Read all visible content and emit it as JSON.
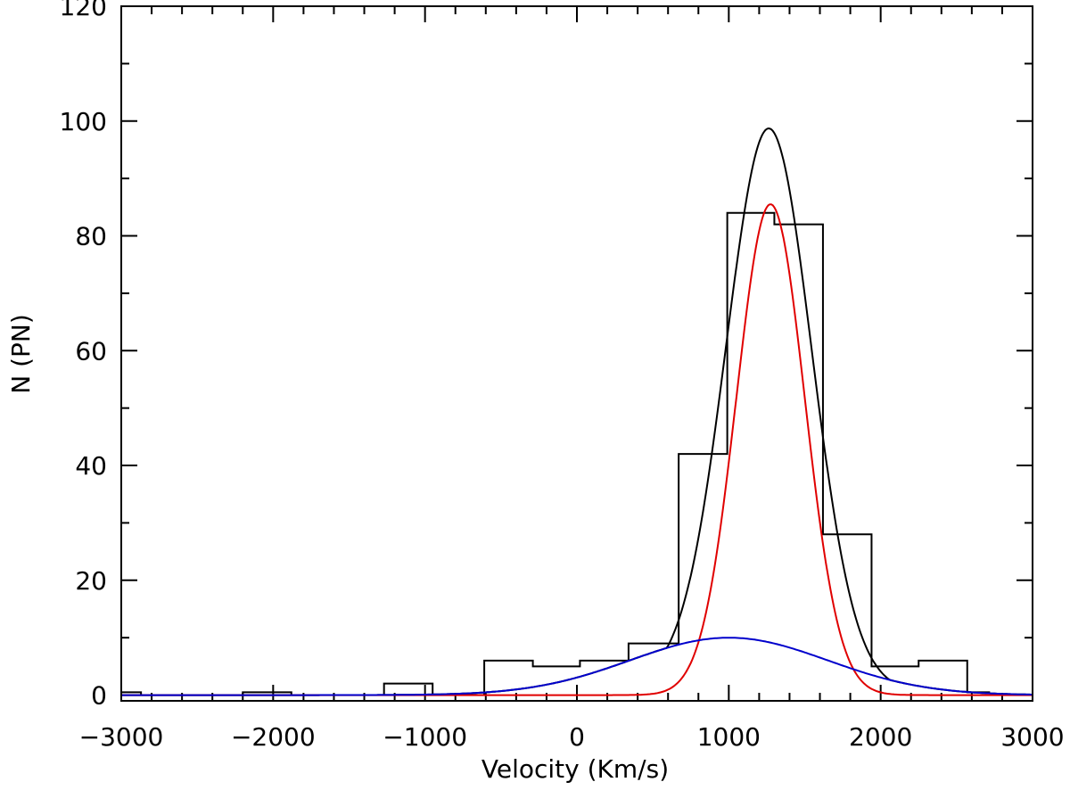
{
  "chart_data": {
    "type": "bar",
    "title": "",
    "xlabel": "Velocity (Km/s)",
    "ylabel": "N (PN)",
    "xlim": [
      -3000,
      3000
    ],
    "ylim": [
      -1,
      120
    ],
    "x_ticks": [
      -3000,
      -2000,
      -1000,
      0,
      1000,
      2000,
      3000
    ],
    "x_tick_labels": [
      "−3000",
      "−2000",
      "−1000",
      "0",
      "1000",
      "2000",
      "3000"
    ],
    "y_ticks": [
      0,
      20,
      40,
      60,
      80,
      100,
      120
    ],
    "y_tick_labels": [
      "0",
      "20",
      "40",
      "60",
      "80",
      "100",
      "120"
    ],
    "grid": false,
    "histogram": {
      "color": "#000000",
      "bin_edges": [
        -3000,
        -2870,
        -2200,
        -1880,
        -1270,
        -950,
        -610,
        -290,
        20,
        340,
        670,
        990,
        1300,
        1620,
        1940,
        2250,
        2570,
        2720
      ],
      "counts": [
        0.5,
        0,
        0.5,
        0,
        2,
        0,
        6,
        5,
        6,
        9,
        42,
        84,
        82,
        28,
        5,
        6,
        0.5
      ]
    },
    "series": [
      {
        "type": "gaussian",
        "color": "#000000",
        "amplitude": 95.5,
        "center": 1265,
        "sigma": 280,
        "secondary": {
          "amplitude": 10,
          "center": 1000,
          "sigma": 650
        }
      },
      {
        "type": "gaussian",
        "color": "#e00000",
        "amplitude": 85.5,
        "center": 1275,
        "sigma": 225
      },
      {
        "type": "gaussian",
        "color": "#0000cc",
        "amplitude": 10,
        "center": 1000,
        "sigma": 650
      }
    ]
  }
}
